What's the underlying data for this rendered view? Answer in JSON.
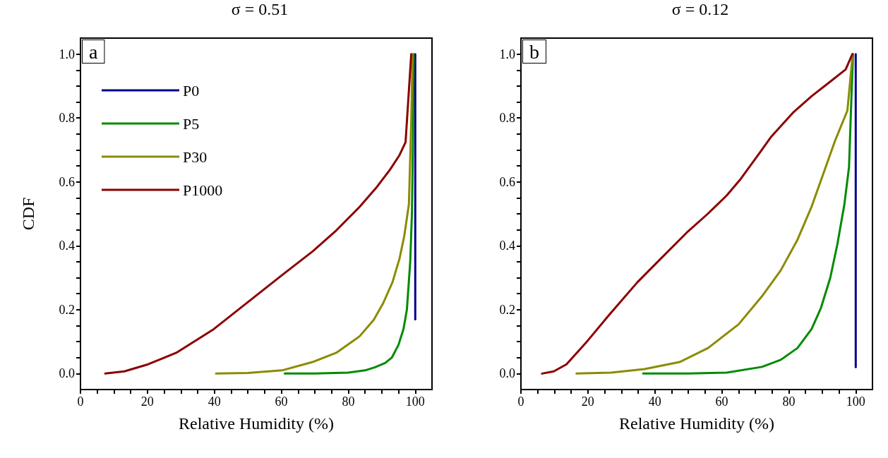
{
  "chart_data": [
    {
      "type": "line",
      "title": "σ = 0.51",
      "xlabel": "Relative Humidity (%)",
      "ylabel": "CDF",
      "annotations": [
        "a"
      ],
      "legend": "top left",
      "grid": false,
      "xlim": [
        0,
        105
      ],
      "xticks": [
        0,
        {
          "value": 5,
          "label": null
        },
        {
          "value": 10,
          "label": null
        },
        {
          "value": 15,
          "label": null
        },
        20,
        {
          "value": 25,
          "label": null
        },
        {
          "value": 30,
          "label": null
        },
        {
          "value": 35,
          "label": null
        },
        40,
        {
          "value": 45,
          "label": null
        },
        {
          "value": 50,
          "label": null
        },
        {
          "value": 55,
          "label": null
        },
        60,
        {
          "value": 65,
          "label": null
        },
        {
          "value": 70,
          "label": null
        },
        {
          "value": 75,
          "label": null
        },
        80,
        {
          "value": 85,
          "label": null
        },
        {
          "value": 90,
          "label": null
        },
        {
          "value": 95,
          "label": null
        },
        100
      ],
      "ylim": [
        -0.05,
        1.05
      ],
      "yticks": [
        {
          "value": 0,
          "label": "0.0"
        },
        {
          "value": 0.05,
          "label": null
        },
        {
          "value": 0.1,
          "label": null
        },
        {
          "value": 0.15,
          "label": null
        },
        0.2,
        {
          "value": 0.25,
          "label": null
        },
        {
          "value": 0.3,
          "label": null
        },
        {
          "value": 0.35,
          "label": null
        },
        0.4,
        {
          "value": 0.45,
          "label": null
        },
        {
          "value": 0.5,
          "label": null
        },
        {
          "value": 0.55,
          "label": null
        },
        0.6,
        {
          "value": 0.65,
          "label": null
        },
        {
          "value": 0.7,
          "label": null
        },
        {
          "value": 0.75,
          "label": null
        },
        0.8,
        {
          "value": 0.85,
          "label": null
        },
        {
          "value": 0.9,
          "label": null
        },
        {
          "value": 0.95,
          "label": null
        },
        {
          "value": 1,
          "label": "1.0"
        }
      ],
      "series": [
        {
          "name": "P0",
          "color": "#00008b",
          "x": [
            100,
            100
          ],
          "values": [
            0.17,
            1.0
          ]
        },
        {
          "name": "P5",
          "color": "#008b00",
          "x": [
            61,
            70,
            80,
            85,
            88,
            91,
            93,
            95,
            96.5,
            97.5,
            98.5,
            99,
            99.3,
            99.5
          ],
          "values": [
            0,
            0,
            0.003,
            0.01,
            0.02,
            0.033,
            0.05,
            0.09,
            0.14,
            0.2,
            0.35,
            0.5,
            0.71,
            1.0
          ]
        },
        {
          "name": "P30",
          "color": "#8b8b00",
          "x": [
            40.5,
            50,
            60.2,
            69.3,
            76.4,
            83.4,
            87.6,
            90.4,
            93.2,
            95.3,
            96.7,
            98.1,
            98.8,
            99.2
          ],
          "values": [
            0,
            0.002,
            0.01,
            0.036,
            0.065,
            0.117,
            0.168,
            0.22,
            0.286,
            0.36,
            0.43,
            0.53,
            0.79,
            1.0
          ]
        },
        {
          "name": "P1000",
          "color": "#8b0000",
          "x": [
            7.4,
            13.1,
            20.2,
            28.6,
            39.8,
            50.4,
            60.2,
            69.3,
            76.4,
            83.4,
            88.3,
            92.5,
            95.3,
            97.1,
            98.8
          ],
          "values": [
            0,
            0.007,
            0.029,
            0.065,
            0.139,
            0.227,
            0.308,
            0.382,
            0.448,
            0.522,
            0.581,
            0.639,
            0.684,
            0.724,
            1.0
          ]
        }
      ]
    },
    {
      "type": "line",
      "title": "σ = 0.12",
      "xlabel": "Relative Humidity (%)",
      "annotations": [
        "b"
      ],
      "grid": false,
      "xlim": [
        0,
        105
      ],
      "xticks": [
        0,
        {
          "value": 5,
          "label": null
        },
        {
          "value": 10,
          "label": null
        },
        {
          "value": 15,
          "label": null
        },
        20,
        {
          "value": 25,
          "label": null
        },
        {
          "value": 30,
          "label": null
        },
        {
          "value": 35,
          "label": null
        },
        40,
        {
          "value": 45,
          "label": null
        },
        {
          "value": 50,
          "label": null
        },
        {
          "value": 55,
          "label": null
        },
        60,
        {
          "value": 65,
          "label": null
        },
        {
          "value": 70,
          "label": null
        },
        {
          "value": 75,
          "label": null
        },
        80,
        {
          "value": 85,
          "label": null
        },
        {
          "value": 90,
          "label": null
        },
        {
          "value": 95,
          "label": null
        },
        100
      ],
      "ylim": [
        -0.05,
        1.05
      ],
      "yticks": [
        {
          "value": 0,
          "label": "0.0"
        },
        {
          "value": 0.05,
          "label": null
        },
        {
          "value": 0.1,
          "label": null
        },
        {
          "value": 0.15,
          "label": null
        },
        0.2,
        {
          "value": 0.25,
          "label": null
        },
        {
          "value": 0.3,
          "label": null
        },
        {
          "value": 0.35,
          "label": null
        },
        0.4,
        {
          "value": 0.45,
          "label": null
        },
        {
          "value": 0.5,
          "label": null
        },
        {
          "value": 0.55,
          "label": null
        },
        0.6,
        {
          "value": 0.65,
          "label": null
        },
        {
          "value": 0.7,
          "label": null
        },
        {
          "value": 0.75,
          "label": null
        },
        0.8,
        {
          "value": 0.85,
          "label": null
        },
        {
          "value": 0.9,
          "label": null
        },
        {
          "value": 0.95,
          "label": null
        },
        {
          "value": 1,
          "label": "1.0"
        }
      ],
      "series": [
        {
          "color": "#00008b",
          "x": [
            100,
            100
          ],
          "values": [
            0.02,
            1.0
          ]
        },
        {
          "color": "#008b00",
          "x": [
            36.5,
            50,
            61.5,
            72,
            77.6,
            82.6,
            86.8,
            89.6,
            92.4,
            94.5,
            96.6,
            98,
            98.7,
            99.2
          ],
          "values": [
            0,
            0,
            0.003,
            0.021,
            0.043,
            0.08,
            0.139,
            0.205,
            0.3,
            0.404,
            0.529,
            0.647,
            0.86,
            1.0
          ]
        },
        {
          "color": "#8b8b00",
          "x": [
            16.6,
            27,
            36.9,
            47.4,
            55.9,
            65,
            72,
            77.6,
            82.6,
            86.8,
            90.3,
            93.8,
            97.5,
            99.1
          ],
          "values": [
            0,
            0.003,
            0.014,
            0.036,
            0.08,
            0.154,
            0.242,
            0.323,
            0.419,
            0.522,
            0.625,
            0.728,
            0.823,
            1.0
          ]
        },
        {
          "color": "#8b0000",
          "x": [
            6.3,
            9.8,
            13.6,
            19.3,
            26.3,
            34.8,
            41.8,
            49.5,
            55.8,
            61.5,
            65.7,
            71.3,
            74.8,
            81.2,
            86.8,
            91.7,
            97,
            99
          ],
          "values": [
            0,
            0.007,
            0.029,
            0.095,
            0.183,
            0.286,
            0.36,
            0.441,
            0.5,
            0.558,
            0.61,
            0.691,
            0.742,
            0.816,
            0.868,
            0.908,
            0.952,
            1.0
          ]
        }
      ]
    }
  ]
}
